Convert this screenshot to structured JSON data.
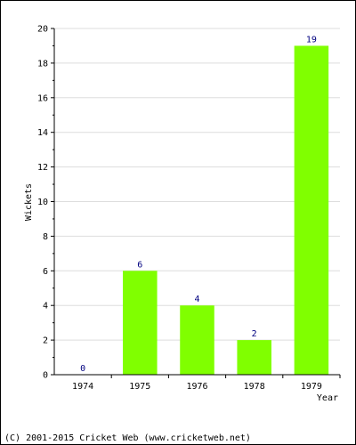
{
  "chart_data": {
    "type": "bar",
    "title": "",
    "xlabel": "Year",
    "ylabel": "Wickets",
    "categories": [
      "1974",
      "1975",
      "1976",
      "1978",
      "1979"
    ],
    "values": [
      0,
      6,
      4,
      2,
      19
    ],
    "ylim": [
      0,
      20
    ],
    "yticks": [
      0,
      2,
      4,
      6,
      8,
      10,
      12,
      14,
      16,
      18,
      20
    ],
    "grid": true,
    "data_labels": true
  },
  "colors": {
    "bar": "#80ff00",
    "grid": "#dddddd",
    "data_label": "#000080",
    "axis": "#000000"
  },
  "footer": {
    "copyright": "(C) 2001-2015 Cricket Web (www.cricketweb.net)"
  }
}
